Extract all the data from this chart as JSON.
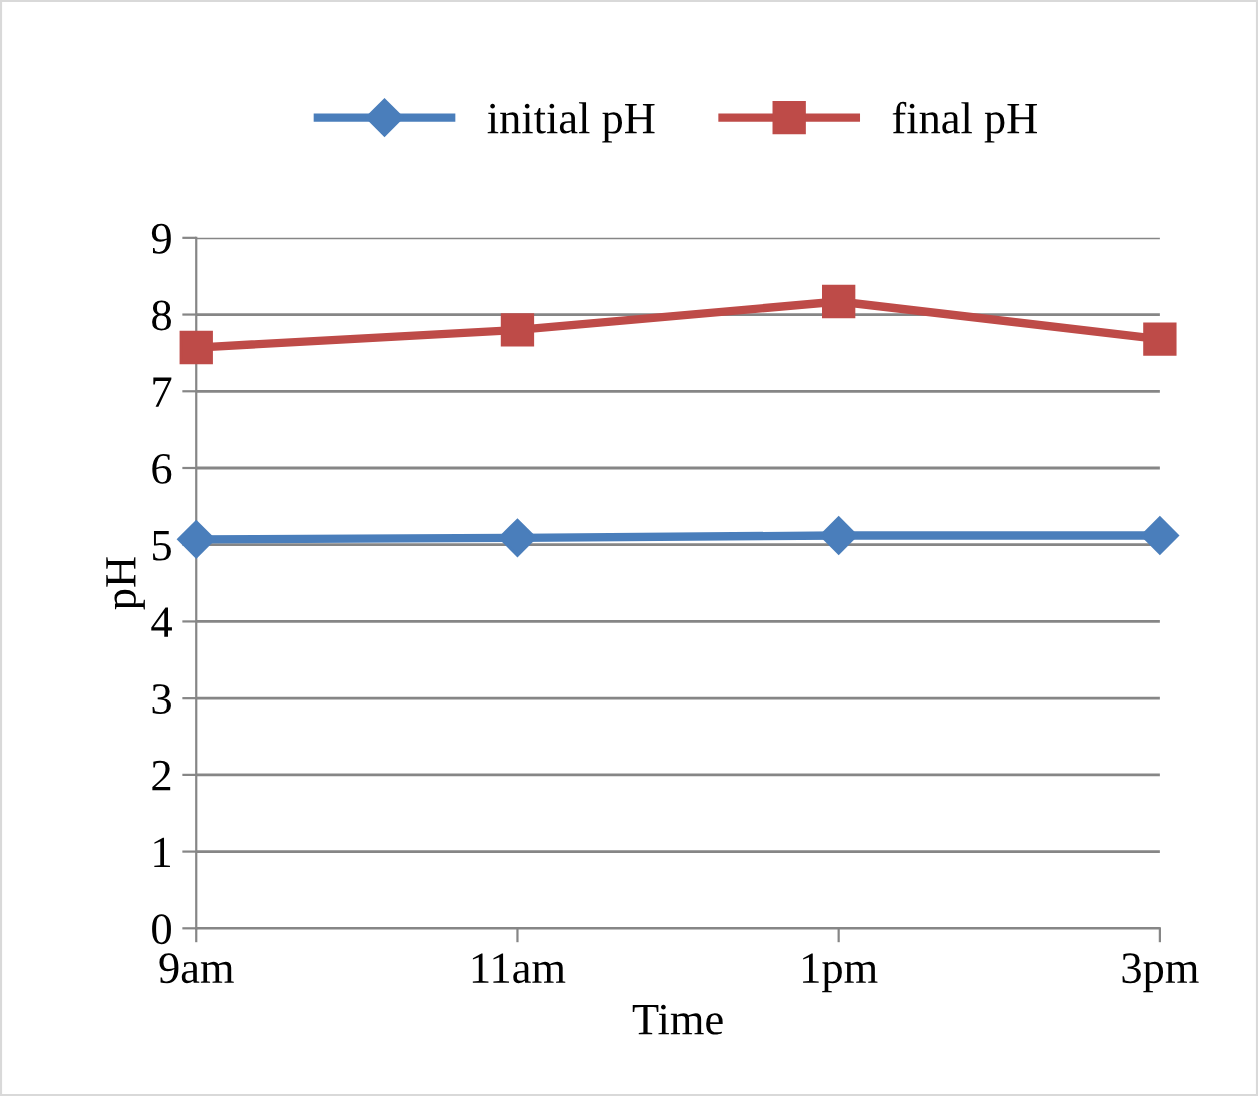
{
  "chart_data": {
    "type": "line",
    "xlabel": "Time",
    "ylabel": "pH",
    "categories": [
      "9am",
      "11am",
      "1pm",
      "3pm"
    ],
    "series": [
      {
        "name": "initial pH",
        "color": "#4a7ebb",
        "marker": "diamond",
        "values": [
          5.07,
          5.09,
          5.12,
          5.12
        ]
      },
      {
        "name": "final pH",
        "color": "#be4b48",
        "marker": "square",
        "values": [
          7.57,
          7.8,
          8.17,
          7.68
        ]
      }
    ],
    "ylim": [
      0,
      9
    ],
    "yticks": [
      0,
      1,
      2,
      3,
      4,
      5,
      6,
      7,
      8,
      9
    ],
    "grid": "y",
    "legend": "top"
  }
}
